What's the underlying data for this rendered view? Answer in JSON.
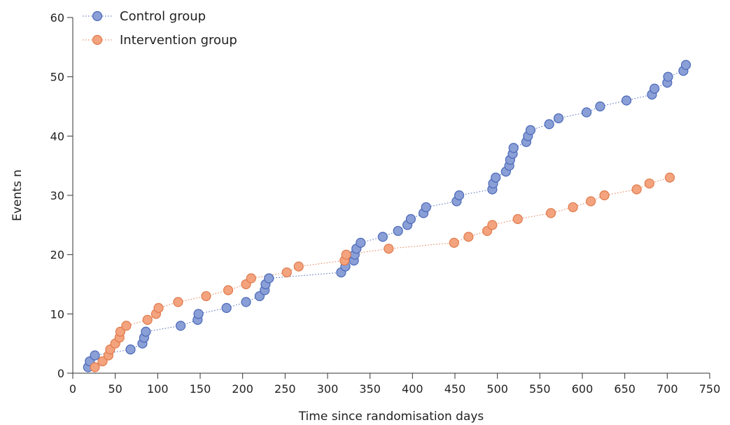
{
  "chart_data": {
    "type": "scatter",
    "title": "",
    "xlabel": "Time since randomisation days",
    "ylabel": "Events n",
    "xlim": [
      0,
      750
    ],
    "ylim": [
      0,
      60
    ],
    "xticks": [
      0,
      50,
      100,
      150,
      200,
      250,
      300,
      350,
      400,
      450,
      500,
      550,
      600,
      650,
      700,
      750
    ],
    "yticks": [
      0,
      10,
      20,
      30,
      40,
      50,
      60
    ],
    "grid": false,
    "legend_position": "top-left",
    "connect_points": "dotted-line",
    "series": [
      {
        "name": "Control group",
        "color": "#8a9fd6",
        "edge_color": "#4a68b8",
        "line_color": "#4a68b8",
        "points": [
          [
            18,
            1
          ],
          [
            20,
            2
          ],
          [
            26,
            3
          ],
          [
            68,
            4
          ],
          [
            82,
            5
          ],
          [
            84,
            6
          ],
          [
            86,
            7
          ],
          [
            127,
            8
          ],
          [
            147,
            9
          ],
          [
            148,
            10
          ],
          [
            181,
            11
          ],
          [
            204,
            12
          ],
          [
            220,
            13
          ],
          [
            226,
            14
          ],
          [
            227,
            15
          ],
          [
            231,
            16
          ],
          [
            316,
            17
          ],
          [
            321,
            18
          ],
          [
            331,
            19
          ],
          [
            332,
            20
          ],
          [
            334,
            21
          ],
          [
            339,
            22
          ],
          [
            365,
            23
          ],
          [
            383,
            24
          ],
          [
            394,
            25
          ],
          [
            398,
            26
          ],
          [
            413,
            27
          ],
          [
            416,
            28
          ],
          [
            452,
            29
          ],
          [
            455,
            30
          ],
          [
            494,
            31
          ],
          [
            495,
            32
          ],
          [
            498,
            33
          ],
          [
            510,
            34
          ],
          [
            514,
            35
          ],
          [
            515,
            36
          ],
          [
            518,
            37
          ],
          [
            519,
            38
          ],
          [
            534,
            39
          ],
          [
            536,
            40
          ],
          [
            539,
            41
          ],
          [
            561,
            42
          ],
          [
            572,
            43
          ],
          [
            605,
            44
          ],
          [
            621,
            45
          ],
          [
            652,
            46
          ],
          [
            682,
            47
          ],
          [
            685,
            48
          ],
          [
            700,
            49
          ],
          [
            701,
            50
          ],
          [
            719,
            51
          ],
          [
            722,
            52
          ]
        ]
      },
      {
        "name": "Intervention group",
        "color": "#f3a37e",
        "edge_color": "#e07a4c",
        "line_color": "#e07a4c",
        "points": [
          [
            26,
            1
          ],
          [
            35,
            2
          ],
          [
            42,
            3
          ],
          [
            44,
            4
          ],
          [
            50,
            5
          ],
          [
            55,
            6
          ],
          [
            56,
            7
          ],
          [
            63,
            8
          ],
          [
            88,
            9
          ],
          [
            98,
            10
          ],
          [
            101,
            11
          ],
          [
            124,
            12
          ],
          [
            157,
            13
          ],
          [
            183,
            14
          ],
          [
            204,
            15
          ],
          [
            210,
            16
          ],
          [
            252,
            17
          ],
          [
            266,
            18
          ],
          [
            320,
            19
          ],
          [
            322,
            20
          ],
          [
            372,
            21
          ],
          [
            449,
            22
          ],
          [
            466,
            23
          ],
          [
            488,
            24
          ],
          [
            494,
            25
          ],
          [
            524,
            26
          ],
          [
            563,
            27
          ],
          [
            589,
            28
          ],
          [
            610,
            29
          ],
          [
            626,
            30
          ],
          [
            664,
            31
          ],
          [
            679,
            32
          ],
          [
            703,
            33
          ]
        ]
      }
    ]
  }
}
